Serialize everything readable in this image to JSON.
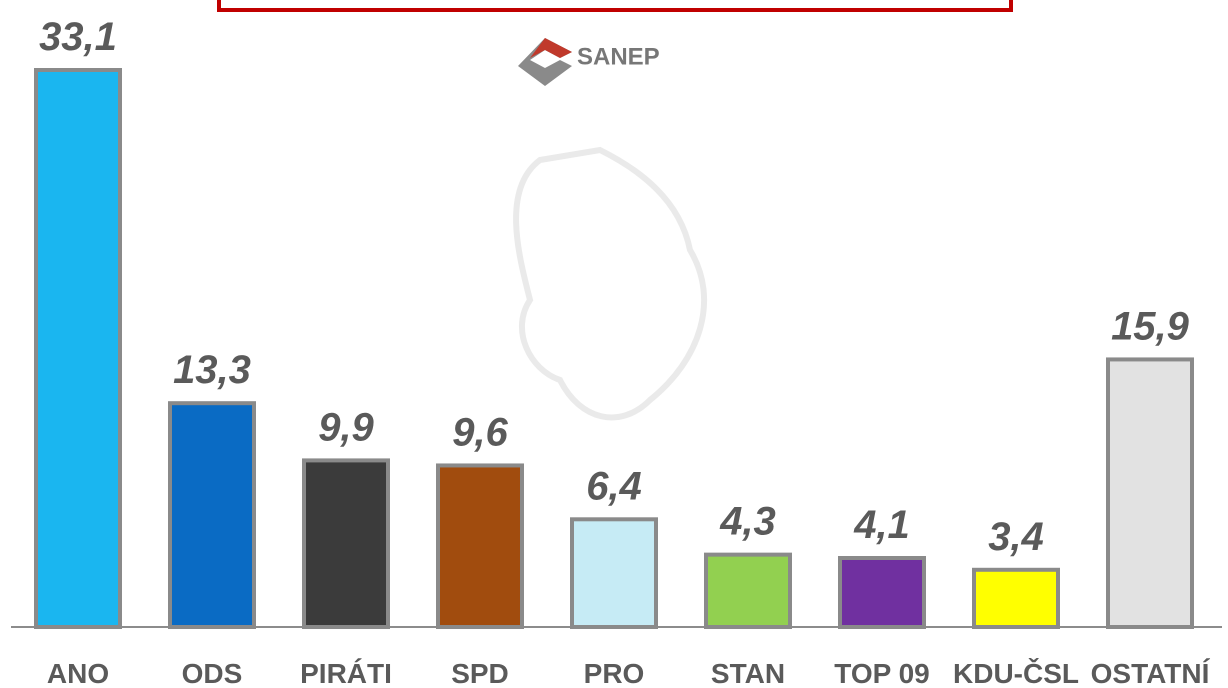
{
  "chart_data": {
    "type": "bar",
    "logo_text": "SANEP",
    "categories": [
      "ANO",
      "ODS",
      "PIRÁTI",
      "SPD",
      "PRO",
      "STAN",
      "TOP 09",
      "KDU-ČSL",
      "OSTATNÍ"
    ],
    "values": [
      33.1,
      13.3,
      9.9,
      9.6,
      6.4,
      4.3,
      4.1,
      3.4,
      15.9
    ],
    "value_labels": [
      "33,1",
      "13,3",
      "9,9",
      "9,6",
      "6,4",
      "4,3",
      "4,1",
      "3,4",
      "15,9"
    ],
    "colors": [
      "#1ab6f0",
      "#0a6bc4",
      "#3b3b3b",
      "#a14c0e",
      "#c6ebf5",
      "#92d050",
      "#7030a0",
      "#ffff00",
      "#e2e2e2"
    ]
  }
}
